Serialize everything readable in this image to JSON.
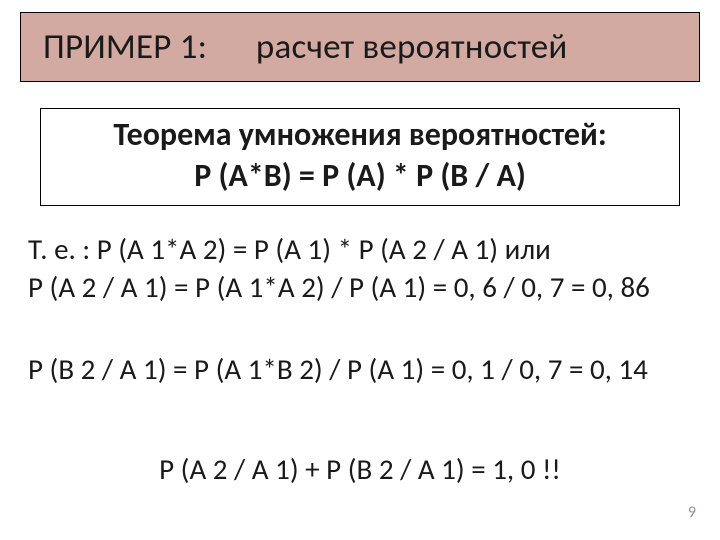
{
  "colors": {
    "title_bg": "#d2aaa2",
    "background": "#ffffff",
    "text": "#1a1a1a",
    "border": "#000000",
    "page_num": "#9a8f8a"
  },
  "typography": {
    "title_fontsize": 35,
    "theorem_fontsize": 32,
    "body_fontsize": 29,
    "page_num_fontsize": 16,
    "font_family": "Calibri"
  },
  "title": {
    "label_left": "ПРИМЕР 1:",
    "label_right": "расчет вероятностей"
  },
  "theorem": {
    "line1": "Теорема умножения вероятностей:",
    "line2": "Р (А*В) = Р (А) * Р (В / А)"
  },
  "body": {
    "block1_line1": "Т. е. :   Р (А 1*А 2) = Р (А 1) * Р (А 2 / А 1) или",
    "block1_line2": "Р (А 2 / А 1) = Р (А 1*А 2) / Р (А 1)  = 0, 6 / 0, 7 = 0, 86",
    "block2_line1": "Р (В 2 / А 1) = Р (А 1*В 2) / Р (А 1)  = 0, 1 / 0, 7 = 0, 14",
    "block3_line1": "Р (А 2 / А 1) + Р (В 2 / А 1)  = 1, 0  !!"
  },
  "page_number": "9"
}
